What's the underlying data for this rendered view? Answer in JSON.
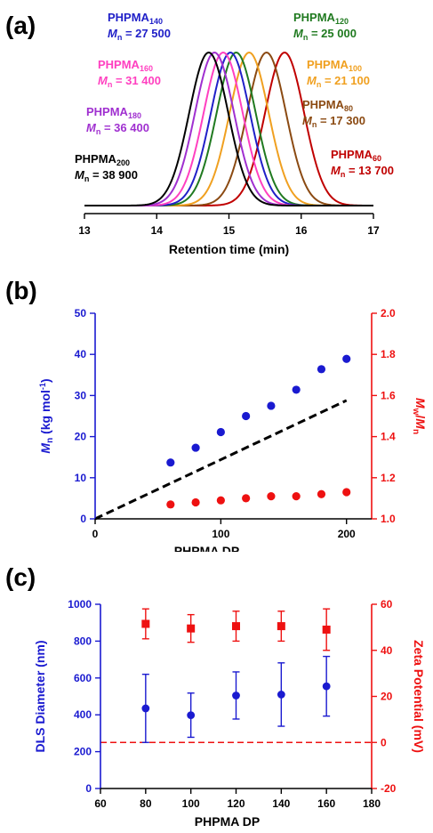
{
  "chart_data": [
    {
      "panel": "(a)",
      "type": "line",
      "xlabel": "Retention time (min)",
      "xlim": [
        13,
        17
      ],
      "xticks": [
        "13",
        "14",
        "15",
        "16",
        "17"
      ],
      "series": [
        {
          "name": "PHPMA",
          "sub": "60",
          "mn_label": "M",
          "mn_sub": "n",
          "mn_value": " = 13 700",
          "peak": 15.77,
          "color": "#c00000"
        },
        {
          "name": "PHPMA",
          "sub": "80",
          "mn_label": "M",
          "mn_sub": "n",
          "mn_value": " = 17 300",
          "peak": 15.52,
          "color": "#8b4a12"
        },
        {
          "name": "PHPMA",
          "sub": "100",
          "mn_label": "M",
          "mn_sub": "n",
          "mn_value": " = 21 100",
          "peak": 15.28,
          "color": "#f0a020"
        },
        {
          "name": "PHPMA",
          "sub": "120",
          "mn_label": "M",
          "mn_sub": "n",
          "mn_value": " = 25 000",
          "peak": 15.1,
          "color": "#207a20"
        },
        {
          "name": "PHPMA",
          "sub": "140",
          "mn_label": "M",
          "mn_sub": "n",
          "mn_value": " = 27 500",
          "peak": 15.02,
          "color": "#2020c8"
        },
        {
          "name": "PHPMA",
          "sub": "160",
          "mn_label": "M",
          "mn_sub": "n",
          "mn_value": " = 31 400",
          "peak": 14.92,
          "color": "#ff40c0"
        },
        {
          "name": "PHPMA",
          "sub": "180",
          "mn_label": "M",
          "mn_sub": "n",
          "mn_value": " = 36 400",
          "peak": 14.8,
          "color": "#a030d0"
        },
        {
          "name": "PHPMA",
          "sub": "200",
          "mn_label": "M",
          "mn_sub": "n",
          "mn_value": " = 38 900",
          "peak": 14.72,
          "color": "#000000"
        }
      ]
    },
    {
      "panel": "(b)",
      "type": "scatter",
      "xlabel": "PHPMA DP",
      "ylabel_left": {
        "main": "M",
        "sub": "n",
        "rest": " (kg mol",
        "sup": "-1",
        "end": ")"
      },
      "ylabel_right": {
        "a": "M",
        "a_sub": "w",
        "slash": "/",
        "b": "M",
        "b_sub": "n"
      },
      "xlim": [
        0,
        220
      ],
      "xticks": [
        "0",
        "100",
        "200"
      ],
      "ylim_left": [
        0,
        50
      ],
      "yticks_left": [
        "0",
        "10",
        "20",
        "30",
        "40",
        "50"
      ],
      "ylim_right": [
        1.0,
        2.0
      ],
      "yticks_right": [
        "1.0",
        "1.2",
        "1.4",
        "1.6",
        "1.8",
        "2.0"
      ],
      "x": [
        60,
        80,
        100,
        120,
        140,
        160,
        180,
        200
      ],
      "mn": [
        13.7,
        17.3,
        21.1,
        25.0,
        27.5,
        31.4,
        36.4,
        38.9
      ],
      "dispersity": [
        1.07,
        1.08,
        1.09,
        1.1,
        1.11,
        1.11,
        1.12,
        1.13
      ],
      "theory_line": {
        "x": [
          0,
          200
        ],
        "y": [
          0,
          28.8
        ]
      },
      "colors": {
        "mn": "#1a1ad0",
        "dispersity": "#ee1111",
        "theory": "#000000"
      }
    },
    {
      "panel": "(c)",
      "type": "scatter",
      "xlabel": "PHPMA DP",
      "ylabel_left": "DLS Diameter (nm)",
      "ylabel_right": "Zeta Potential (mV)",
      "xlim": [
        60,
        180
      ],
      "xticks": [
        "60",
        "80",
        "100",
        "120",
        "140",
        "160",
        "180"
      ],
      "ylim_left": [
        0,
        1000
      ],
      "yticks_left": [
        "0",
        "200",
        "400",
        "600",
        "800",
        "1000"
      ],
      "ylim_right": [
        -20,
        60
      ],
      "yticks_right": [
        "-20",
        "0",
        "20",
        "40",
        "60"
      ],
      "x": [
        80,
        100,
        120,
        140,
        160
      ],
      "diameter": [
        435,
        398,
        505,
        510,
        555
      ],
      "diameter_err": [
        185,
        120,
        128,
        172,
        162
      ],
      "zeta": [
        51.5,
        49.5,
        50.5,
        50.5,
        49.0
      ],
      "zeta_err": [
        6.5,
        6.0,
        6.5,
        6.5,
        9.0
      ],
      "zero_line": 0,
      "colors": {
        "diameter": "#1a1ad0",
        "zeta": "#ee1111"
      }
    }
  ]
}
